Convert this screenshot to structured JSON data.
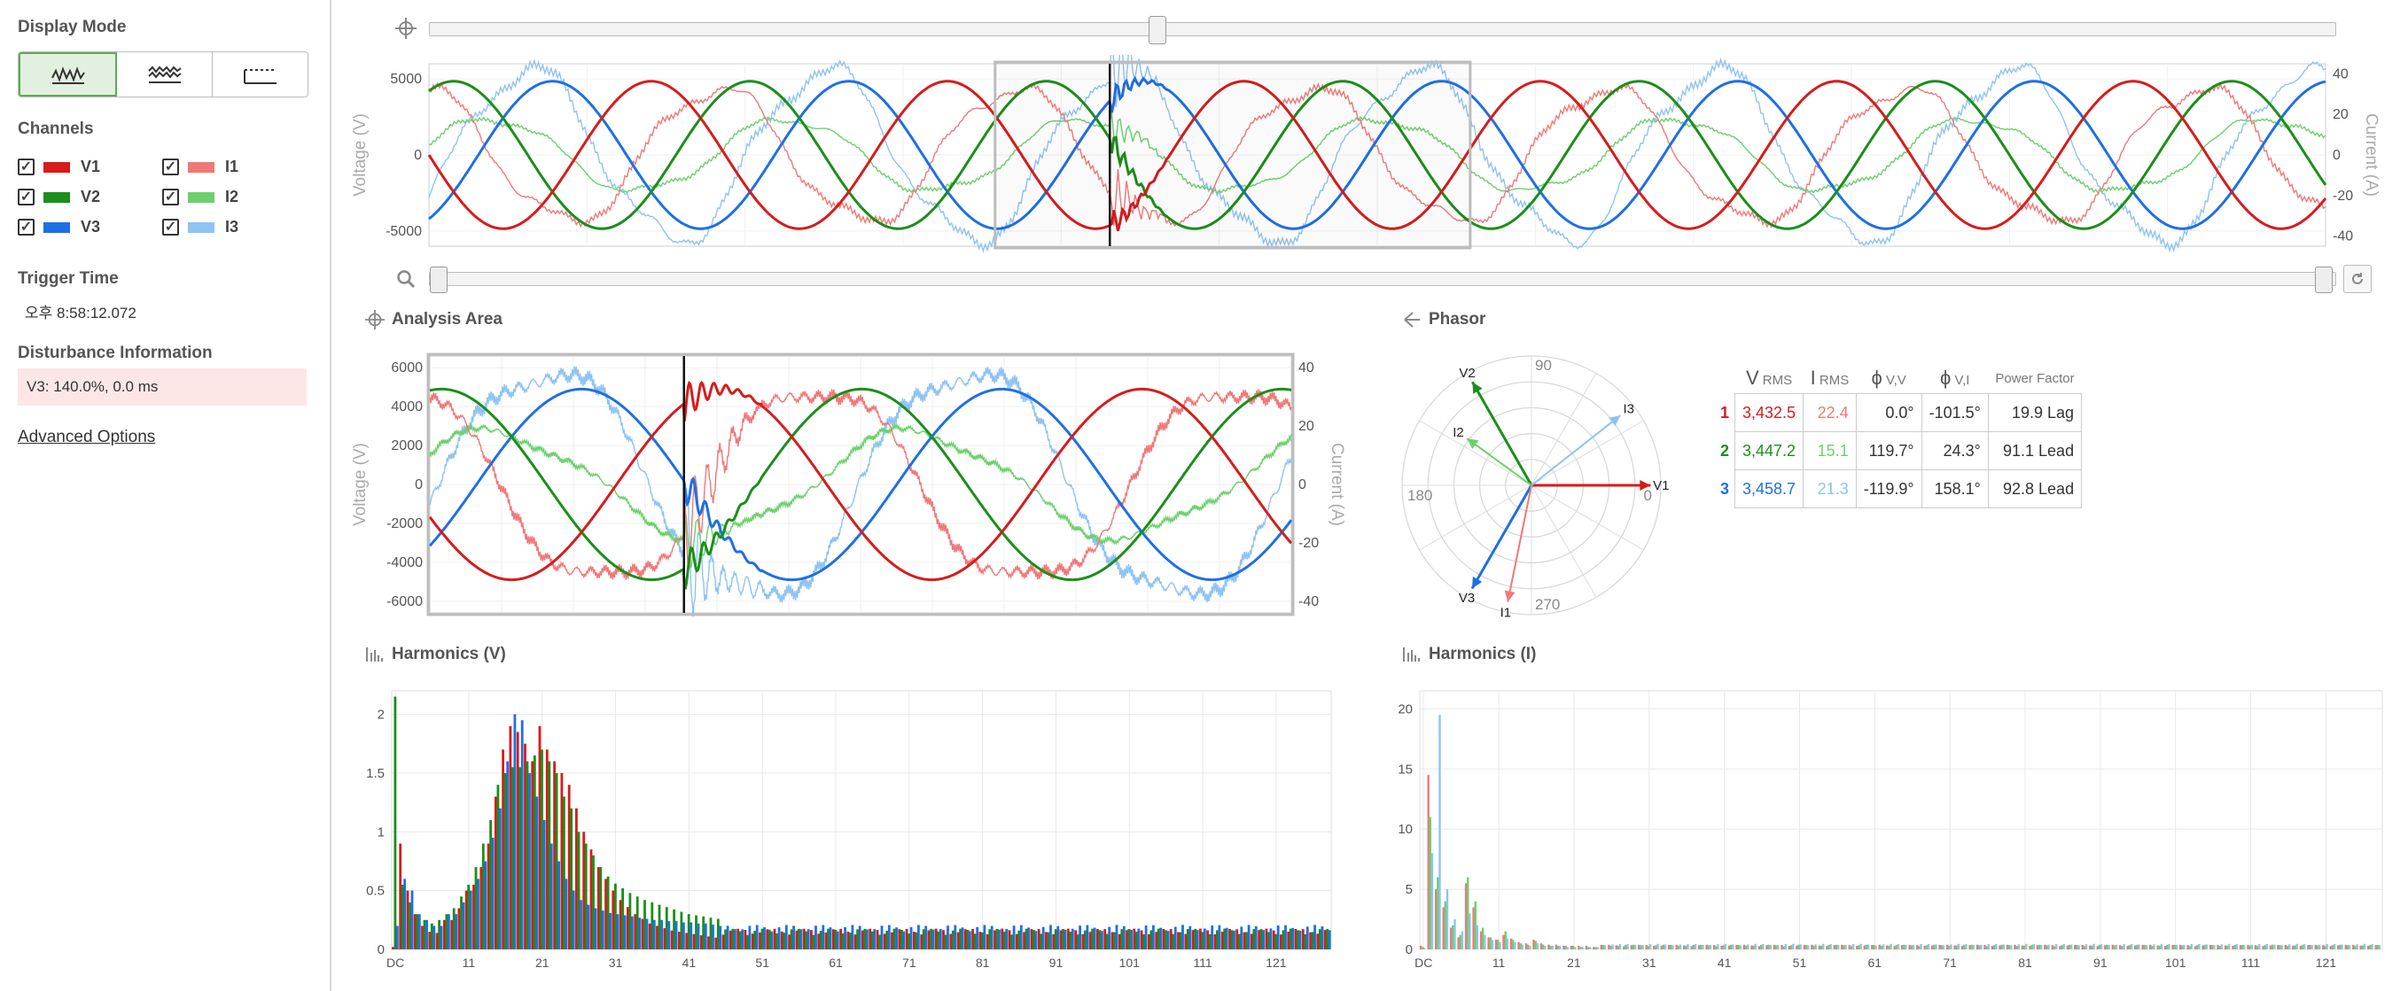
{
  "sidebar": {
    "display_mode_title": "Display Mode",
    "display_modes": [
      {
        "icon": "waveform-icon",
        "selected": true
      },
      {
        "icon": "envelope-icon",
        "selected": false
      },
      {
        "icon": "rms-trend-icon",
        "selected": false
      }
    ],
    "channels_title": "Channels",
    "channels": [
      {
        "label": "V1",
        "color": "#d81b1b",
        "checked": true
      },
      {
        "label": "I1",
        "color": "#f07878",
        "checked": true
      },
      {
        "label": "V2",
        "color": "#1a8f1a",
        "checked": true
      },
      {
        "label": "I2",
        "color": "#6cd06c",
        "checked": true
      },
      {
        "label": "V3",
        "color": "#1e6fe6",
        "checked": true
      },
      {
        "label": "I3",
        "color": "#8ec3f2",
        "checked": true
      }
    ],
    "trigger_time_title": "Trigger Time",
    "trigger_time": "오후 8:58:12.072",
    "disturbance_title": "Disturbance Information",
    "disturbance_info": "V3: 140.0%, 0.0 ms",
    "advanced_options": "Advanced Options"
  },
  "overview": {
    "y_left_label": "Voltage (V)",
    "y_right_label": "Current (A)",
    "y_left_ticks": [
      "5000",
      "0",
      "-5000"
    ],
    "y_right_ticks": [
      "40",
      "20",
      "0",
      "-20",
      "-40"
    ],
    "top_slider_position": 0.382,
    "zoom_range": [
      0.0,
      1.0
    ]
  },
  "analysis": {
    "title": "Analysis Area",
    "y_left_label": "Voltage (V)",
    "y_right_label": "Current (A)",
    "y_left_ticks": [
      "6000",
      "4000",
      "2000",
      "0",
      "-2000",
      "-4000",
      "-6000"
    ],
    "y_right_ticks": [
      "40",
      "20",
      "0",
      "-20",
      "-40"
    ]
  },
  "phasor": {
    "title": "Phasor",
    "angle_labels": {
      "deg0": "0",
      "deg90": "90",
      "deg180": "180",
      "deg270": "270"
    },
    "vector_labels": {
      "V1": "V1",
      "V2": "V2",
      "V3": "V3",
      "I1": "I1",
      "I2": "I2",
      "I3": "I3"
    },
    "table": {
      "headers": {
        "vrms_big": "V",
        "vrms_small": "RMS",
        "irms_big": "I",
        "irms_small": "RMS",
        "phivv_big": "ϕ",
        "phivv_small": "V,V",
        "phivi_big": "ϕ",
        "phivi_small": "V,I",
        "pf": "Power Factor"
      },
      "rows": [
        {
          "idx": "1",
          "vrms": "3,432.5",
          "irms": "22.4",
          "phi_vv": "0.0°",
          "phi_vi": "-101.5°",
          "pf": "19.9 Lag"
        },
        {
          "idx": "2",
          "vrms": "3,447.2",
          "irms": "15.1",
          "phi_vv": "119.7°",
          "phi_vi": "24.3°",
          "pf": "91.1 Lead"
        },
        {
          "idx": "3",
          "vrms": "3,458.7",
          "irms": "21.3",
          "phi_vv": "-119.9°",
          "phi_vi": "158.1°",
          "pf": "92.8 Lead"
        }
      ]
    }
  },
  "harmonics_v": {
    "title": "Harmonics (V)",
    "y_ticks": [
      "2",
      "1.5",
      "1",
      "0.5",
      "0"
    ],
    "x_ticks": [
      "DC",
      "11",
      "21",
      "31",
      "41",
      "51",
      "61",
      "71",
      "81",
      "91",
      "101",
      "111",
      "121"
    ]
  },
  "harmonics_i": {
    "title": "Harmonics (I)",
    "y_ticks": [
      "20",
      "15",
      "10",
      "5",
      "0"
    ],
    "x_ticks": [
      "DC",
      "11",
      "21",
      "31",
      "41",
      "51",
      "61",
      "71",
      "81",
      "91",
      "101",
      "111",
      "121"
    ]
  },
  "chart_data": [
    {
      "type": "line",
      "name_ref": "overview",
      "x_range": [
        0,
        1
      ],
      "ylim_left": [
        -6000,
        6000
      ],
      "ylim_right": [
        -45,
        45
      ],
      "series": [
        {
          "name": "V1",
          "amplitude": 4850,
          "phase_deg": 180,
          "cycles": 6.4
        },
        {
          "name": "V2",
          "amplitude": 4850,
          "phase_deg": 60,
          "cycles": 6.4
        },
        {
          "name": "V3",
          "amplitude": 4850,
          "phase_deg": -60,
          "cycles": 6.4
        },
        {
          "name": "I1",
          "amplitude": 33,
          "phase_deg": 100,
          "cycles": 6.4
        },
        {
          "name": "I2",
          "amplitude": 18,
          "phase_deg": 15,
          "cycles": 6.4
        },
        {
          "name": "I3",
          "amplitude": 42,
          "phase_deg": -30,
          "cycles": 6.4
        }
      ]
    },
    {
      "type": "line",
      "name_ref": "analysis",
      "ylim_left": [
        -6600,
        6600
      ],
      "ylim_right": [
        -44,
        44
      ],
      "trigger_fraction": 0.295,
      "series": [
        {
          "name": "V1",
          "amplitude": 4900,
          "phase_deg": 200,
          "cycles": 2.05
        },
        {
          "name": "V2",
          "amplitude": 4900,
          "phase_deg": 80,
          "cycles": 2.05
        },
        {
          "name": "V3",
          "amplitude": 4900,
          "phase_deg": -40,
          "cycles": 2.05
        },
        {
          "name": "I1",
          "amplitude": 34,
          "phase_deg": 120,
          "cycles": 2.05
        },
        {
          "name": "I2",
          "amplitude": 18,
          "phase_deg": 35,
          "cycles": 2.05
        },
        {
          "name": "I3",
          "amplitude": 40,
          "phase_deg": -10,
          "cycles": 2.05
        }
      ]
    },
    {
      "type": "polar",
      "name_ref": "phasor",
      "vectors": [
        {
          "name": "V1",
          "angle_deg": 0,
          "magnitude": 1.0
        },
        {
          "name": "V2",
          "angle_deg": 119.7,
          "magnitude": 1.0
        },
        {
          "name": "V3",
          "angle_deg": -119.9,
          "magnitude": 1.0
        },
        {
          "name": "I1",
          "angle_deg": -101.5,
          "magnitude": 1.0
        },
        {
          "name": "I2",
          "angle_deg": 144.0,
          "magnitude": 0.67
        },
        {
          "name": "I3",
          "angle_deg": 38.2,
          "magnitude": 0.95
        }
      ]
    },
    {
      "type": "bar",
      "name_ref": "harmonics_v",
      "ylim": [
        0,
        2.2
      ],
      "series": [
        {
          "name": "V1",
          "values": [
            0.02,
            0.9,
            0.5,
            0.3,
            0.2,
            0.15,
            0.14,
            0.25,
            0.25,
            0.35,
            0.5,
            0.55,
            0.7,
            0.9,
            1.3,
            1.7,
            1.9,
            1.85,
            1.75,
            1.6,
            1.9,
            1.7,
            1.6,
            1.5,
            1.4,
            1.2,
            1.0,
            0.85,
            0.7,
            0.6,
            0.5,
            0.42,
            0.36,
            0.3,
            0.26,
            0.22,
            0.2,
            0.18,
            0.16,
            0.15,
            0.14,
            0.13,
            0.12,
            0.11,
            0.1
          ]
        },
        {
          "name": "V2",
          "values": [
            2.15,
            0.55,
            0.4,
            0.3,
            0.25,
            0.22,
            0.25,
            0.3,
            0.35,
            0.45,
            0.55,
            0.7,
            0.9,
            1.1,
            1.4,
            1.5,
            1.55,
            1.55,
            1.6,
            1.65,
            1.7,
            1.6,
            1.5,
            1.3,
            1.2,
            1.0,
            0.9,
            0.8,
            0.7,
            0.62,
            0.56,
            0.52,
            0.48,
            0.45,
            0.42,
            0.4,
            0.38,
            0.36,
            0.34,
            0.32,
            0.3,
            0.29,
            0.28,
            0.27,
            0.26
          ]
        },
        {
          "name": "V3",
          "values": [
            0.2,
            0.6,
            0.5,
            0.3,
            0.25,
            0.2,
            0.2,
            0.3,
            0.3,
            0.4,
            0.5,
            0.6,
            0.75,
            0.95,
            1.2,
            1.6,
            2.0,
            1.95,
            1.5,
            1.3,
            1.1,
            0.9,
            0.75,
            0.6,
            0.5,
            0.42,
            0.38,
            0.35,
            0.33,
            0.31,
            0.3,
            0.29,
            0.28,
            0.27,
            0.26,
            0.25,
            0.25,
            0.24,
            0.24,
            0.23,
            0.23,
            0.22,
            0.22,
            0.21,
            0.2
          ]
        }
      ],
      "tail_level": 0.16
    },
    {
      "type": "bar",
      "name_ref": "harmonics_i",
      "ylim": [
        0,
        21.5
      ],
      "series": [
        {
          "name": "I1",
          "values": [
            0.3,
            14.5,
            5.0,
            3.5,
            1.8,
            1.0,
            5.5,
            3.5,
            1.5,
            1.0,
            0.8,
            1.2,
            0.9,
            0.6,
            0.5,
            0.8,
            0.5,
            0.4,
            0.4,
            0.3,
            0.3,
            0.3,
            0.3,
            0.2
          ]
        },
        {
          "name": "I2",
          "values": [
            0.2,
            11.0,
            6.0,
            4.0,
            2.0,
            1.2,
            6.0,
            4.0,
            1.8,
            1.0,
            0.8,
            1.5,
            0.8,
            0.5,
            0.4,
            0.7,
            0.4,
            0.3,
            0.3,
            0.3,
            0.3,
            0.2,
            0.2,
            0.2
          ]
        },
        {
          "name": "I3",
          "values": [
            0.1,
            8.0,
            19.5,
            5.0,
            2.5,
            1.5,
            3.0,
            2.0,
            1.2,
            0.8,
            0.6,
            0.9,
            0.6,
            0.4,
            0.3,
            0.5,
            0.3,
            0.3,
            0.3,
            0.2,
            0.2,
            0.2,
            0.2,
            0.2
          ]
        }
      ],
      "tail_level": 0.35
    }
  ]
}
